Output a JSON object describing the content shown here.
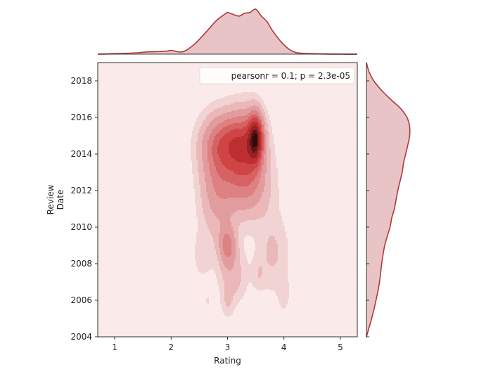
{
  "chart_data": {
    "type": "kde-joint",
    "xlabel": "Rating",
    "ylabel_lines": [
      "Review",
      "Date"
    ],
    "xlim": [
      0.7,
      5.3
    ],
    "ylim": [
      2004,
      2019
    ],
    "xticks": [
      "1",
      "2",
      "3",
      "4",
      "5"
    ],
    "yticks": [
      "2004",
      "2006",
      "2008",
      "2010",
      "2012",
      "2014",
      "2016",
      "2018"
    ],
    "annotation": "pearsonr = 0.1; p = 2.3e-05",
    "legend_position": "top-right",
    "grid": false,
    "colors": {
      "background": "#fbeaea",
      "line": "#b03a3a",
      "fill": "#e8c4c6",
      "levels": [
        "#f2d3d3",
        "#eab8b9",
        "#e39c9d",
        "#dd8182",
        "#d76263",
        "#cf4546",
        "#bc2e30",
        "#952224",
        "#5c1416",
        "#2e0a0b"
      ]
    },
    "marginal_x": {
      "x": [
        0.7,
        1.0,
        1.4,
        1.6,
        1.9,
        2.0,
        2.2,
        2.4,
        2.6,
        2.8,
        2.95,
        3.0,
        3.05,
        3.2,
        3.3,
        3.4,
        3.5,
        3.6,
        3.7,
        3.8,
        4.0,
        4.2,
        4.5,
        5.0,
        5.3
      ],
      "density": [
        0.0,
        0.01,
        0.03,
        0.05,
        0.06,
        0.08,
        0.05,
        0.2,
        0.45,
        0.72,
        0.86,
        0.9,
        0.88,
        0.82,
        0.88,
        0.9,
        0.97,
        0.82,
        0.7,
        0.5,
        0.2,
        0.04,
        0.01,
        0.0,
        0.0
      ]
    },
    "marginal_y": {
      "y": [
        2004.0,
        2004.5,
        2005.0,
        2006.0,
        2007.0,
        2008.0,
        2009.0,
        2010.0,
        2010.5,
        2011.0,
        2012.0,
        2013.0,
        2013.5,
        2014.0,
        2014.5,
        2015.0,
        2015.5,
        2016.0,
        2016.5,
        2017.0,
        2017.5,
        2018.0,
        2018.5,
        2019.0
      ],
      "density": [
        0.0,
        0.06,
        0.12,
        0.22,
        0.3,
        0.35,
        0.42,
        0.54,
        0.58,
        0.64,
        0.72,
        0.82,
        0.85,
        0.9,
        0.95,
        0.99,
        0.99,
        0.93,
        0.78,
        0.55,
        0.34,
        0.17,
        0.06,
        0.0
      ]
    },
    "kde_components": [
      {
        "x": 3.5,
        "y": 2014.9,
        "sx": 0.09,
        "sy": 0.9,
        "w": 1.0
      },
      {
        "x": 3.32,
        "y": 2014.5,
        "sx": 0.22,
        "sy": 1.3,
        "w": 0.65
      },
      {
        "x": 2.95,
        "y": 2014.6,
        "sx": 0.28,
        "sy": 1.1,
        "w": 0.55
      },
      {
        "x": 2.82,
        "y": 2012.3,
        "sx": 0.22,
        "sy": 1.9,
        "w": 0.38
      },
      {
        "x": 3.35,
        "y": 2012.3,
        "sx": 0.28,
        "sy": 1.3,
        "w": 0.42
      },
      {
        "x": 3.0,
        "y": 2009.0,
        "sx": 0.11,
        "sy": 0.75,
        "w": 0.45
      },
      {
        "x": 3.1,
        "y": 2007.3,
        "sx": 0.17,
        "sy": 1.0,
        "w": 0.22
      },
      {
        "x": 3.8,
        "y": 2008.6,
        "sx": 0.2,
        "sy": 1.5,
        "w": 0.18
      },
      {
        "x": 2.55,
        "y": 2008.4,
        "sx": 0.13,
        "sy": 1.0,
        "w": 0.1
      },
      {
        "x": 3.55,
        "y": 2007.4,
        "sx": 0.08,
        "sy": 0.6,
        "w": 0.1
      },
      {
        "x": 4.0,
        "y": 2006.3,
        "sx": 0.07,
        "sy": 0.65,
        "w": 0.11
      },
      {
        "x": 3.0,
        "y": 2005.8,
        "sx": 0.08,
        "sy": 0.55,
        "w": 0.12
      },
      {
        "x": 2.65,
        "y": 2005.9,
        "sx": 0.07,
        "sy": 0.5,
        "w": 0.07
      }
    ],
    "contour_levels": [
      0.045,
      0.1,
      0.18,
      0.28,
      0.38,
      0.48,
      0.6,
      0.72,
      0.85,
      0.94
    ]
  }
}
